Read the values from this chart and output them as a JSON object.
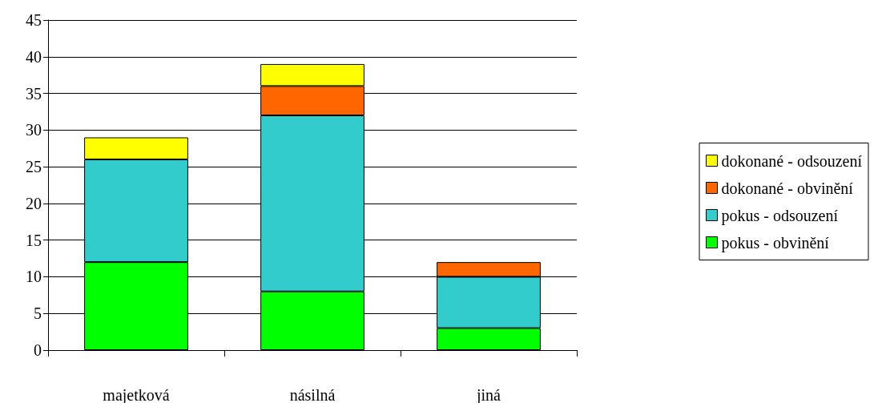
{
  "chart_data": {
    "type": "bar",
    "stacked": true,
    "categories": [
      "majetková",
      "násilná",
      "jiná"
    ],
    "series": [
      {
        "name": "pokus - obvinění",
        "color": "#00ff00",
        "values": [
          12,
          8,
          3
        ]
      },
      {
        "name": "pokus - odsouzení",
        "color": "#33cccc",
        "values": [
          14,
          24,
          7
        ]
      },
      {
        "name": "dokonané - obvinění",
        "color": "#ff6600",
        "values": [
          null,
          4,
          2
        ]
      },
      {
        "name": "dokonané - odsouzení",
        "color": "#ffff00",
        "values": [
          3,
          3,
          null
        ]
      }
    ],
    "ylim": [
      0,
      45
    ],
    "yticks": [
      0,
      5,
      10,
      15,
      20,
      25,
      30,
      35,
      40,
      45
    ],
    "grid": "y",
    "legend": "right"
  }
}
